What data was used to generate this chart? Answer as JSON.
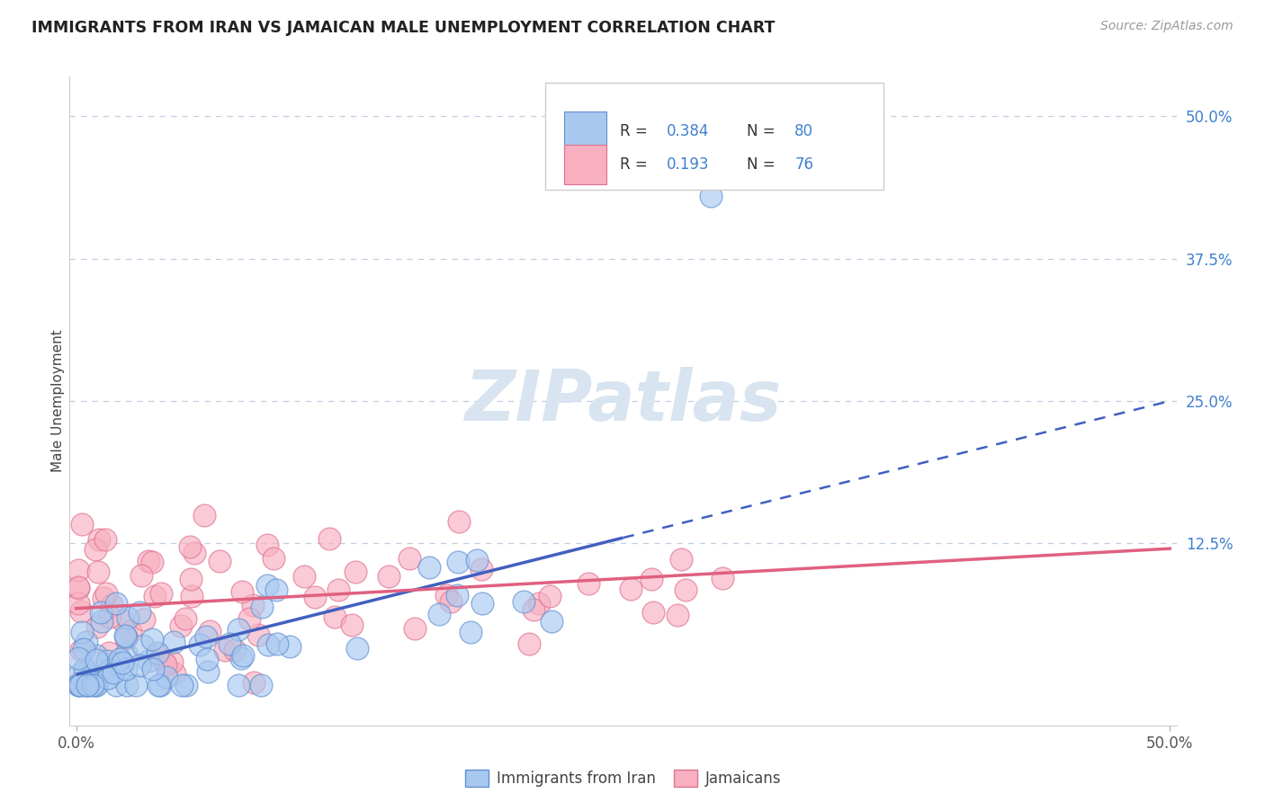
{
  "title": "IMMIGRANTS FROM IRAN VS JAMAICAN MALE UNEMPLOYMENT CORRELATION CHART",
  "source": "Source: ZipAtlas.com",
  "ylabel": "Male Unemployment",
  "blue_color": "#a8c8f0",
  "blue_edge": "#6090d0",
  "pink_color": "#f8b0c0",
  "pink_edge": "#e07090",
  "trend_blue": "#4060c0",
  "trend_pink": "#e06080",
  "background_color": "#ffffff",
  "grid_color": "#c0cfe0",
  "watermark_color": "#d8e4f0",
  "right_tick_color": "#4080d0",
  "title_color": "#222222",
  "source_color": "#999999",
  "ylabel_color": "#444444"
}
